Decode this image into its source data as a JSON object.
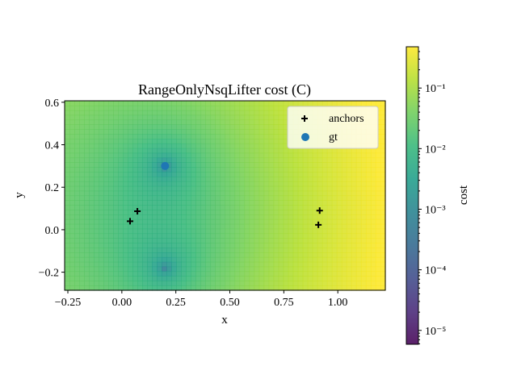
{
  "chart_data": {
    "type": "heatmap",
    "title": "RangeOnlyNsqLifter cost (C)",
    "xlabel": "x",
    "ylabel": "y",
    "xlim": [
      -0.265,
      1.22
    ],
    "ylim": [
      -0.285,
      0.607
    ],
    "xticks": [
      -0.25,
      0,
      0.25,
      0.5,
      0.75,
      1.0
    ],
    "xtick_labels": [
      "−0.25",
      "0.00",
      "0.25",
      "0.50",
      "0.75",
      "1.00"
    ],
    "yticks": [
      -0.2,
      0,
      0.2,
      0.4,
      0.6
    ],
    "ytick_labels": [
      "−0.2",
      "0.0",
      "0.2",
      "0.4",
      "0.6"
    ],
    "colormap": "viridis",
    "colorbar": {
      "label": "cost",
      "scale": "log",
      "range": [
        5.9e-06,
        0.48
      ],
      "ticks": [
        -5,
        -4,
        -3,
        -2,
        -1
      ],
      "tick_labels": [
        "10⁻⁵",
        "10⁻⁴",
        "10⁻³",
        "10⁻²",
        "10⁻¹"
      ]
    },
    "minima_locations": [
      [
        0.2,
        0.3
      ],
      [
        0.2,
        -0.18
      ]
    ],
    "series": [
      {
        "name": "anchors",
        "marker": "plus",
        "color": "#000000",
        "points": [
          [
            0.038,
            0.04
          ],
          [
            0.072,
            0.087
          ],
          [
            0.916,
            0.09
          ],
          [
            0.91,
            0.023
          ]
        ]
      },
      {
        "name": "gt",
        "marker": "circle",
        "color": "#1f77b4",
        "points": [
          [
            0.2,
            0.3
          ]
        ]
      }
    ],
    "legend": {
      "placement": "top-right",
      "entries": [
        "anchors",
        "gt"
      ]
    },
    "grid": false
  }
}
